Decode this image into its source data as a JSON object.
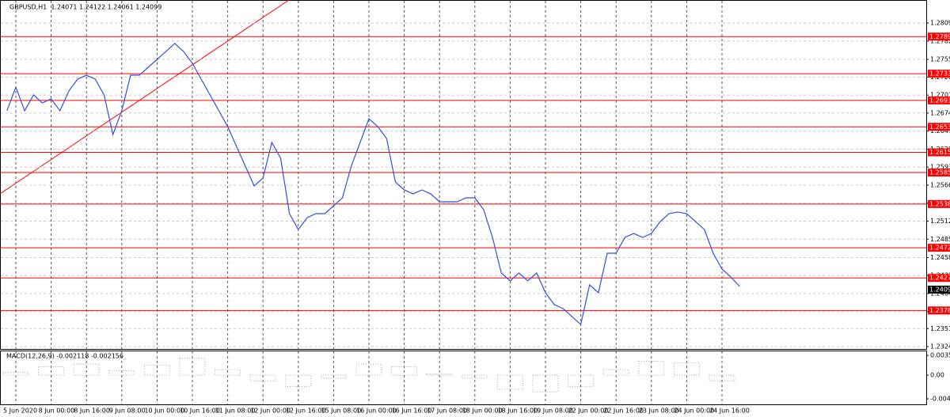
{
  "chart_data": [
    {
      "type": "line",
      "title": "GBPUSD,H1  1.24071 1.24122 1.24061 1.24099",
      "color": "#2f50d8",
      "grid": true,
      "categories": [
        null,
        "5 Jun 2020",
        null,
        null,
        null,
        "8 Jun 00:00",
        null,
        null,
        null,
        "8 Jun 16:00",
        null,
        null,
        null,
        "9 Jun 08:00",
        null,
        null,
        null,
        "10 Jun 00:00",
        null,
        null,
        null,
        "10 Jun 16:00",
        null,
        null,
        null,
        "11 Jun 08:00",
        null,
        null,
        null,
        "12 Jun 00:00",
        null,
        null,
        null,
        "12 Jun 16:00",
        null,
        null,
        null,
        "15 Jun 08:00",
        null,
        null,
        null,
        "16 Jun 00:00",
        null,
        null,
        null,
        "16 Jun 16:00",
        null,
        null,
        null,
        "17 Jun 08:00",
        null,
        null,
        null,
        "18 Jun 00:00",
        null,
        null,
        null,
        "18 Jun 16:00",
        null,
        null,
        null,
        "19 Jun 08:00",
        null,
        null,
        null,
        "22 Jun 00:00",
        null,
        null,
        null,
        "22 Jun 16:00",
        null,
        null,
        null,
        "23 Jun 08:00",
        null,
        null,
        null,
        "24 Jun 00:00",
        null,
        null,
        null,
        "24 Jun 16:00",
        null,
        null
      ],
      "values": [
        1.2678,
        1.27135,
        1.2678,
        1.27017,
        1.26898,
        1.26957,
        1.2678,
        1.27076,
        1.27254,
        1.27313,
        1.27254,
        1.27017,
        1.26424,
        1.2678,
        1.27313,
        1.27313,
        1.27432,
        1.2755,
        1.27669,
        1.27788,
        1.27669,
        1.27491,
        1.27254,
        1.27017,
        1.2678,
        1.26542,
        1.26246,
        1.25949,
        1.25653,
        1.25771,
        1.26305,
        1.26068,
        1.25238,
        1.25001,
        1.25178,
        1.25238,
        1.25238,
        1.25356,
        1.25475,
        1.25949,
        1.26305,
        1.26661,
        1.26542,
        1.26364,
        1.25712,
        1.25594,
        1.25534,
        1.25594,
        1.25534,
        1.25416,
        1.25416,
        1.25416,
        1.25475,
        1.25475,
        1.25297,
        1.24882,
        1.24348,
        1.2423,
        1.24348,
        1.2423,
        1.24348,
        1.24052,
        1.23874,
        1.23815,
        1.23696,
        1.23577,
        1.2417,
        1.24052,
        1.24645,
        1.24645,
        1.24882,
        1.24941,
        1.24882,
        1.24941,
        1.25119,
        1.25238,
        1.25262,
        1.25238,
        1.25119,
        1.25001,
        1.24645,
        1.24408,
        1.24289,
        1.24147
      ],
      "ylim": [
        1.2321,
        1.2844
      ],
      "yticks": [
        1.28095,
        1.27825,
        1.2755,
        1.27285,
        1.27015,
        1.26745,
        1.26475,
        1.26205,
        1.25935,
        1.25665,
        1.25395,
        1.25125,
        1.24855,
        1.2458,
        1.2431,
        1.2404,
        1.2377,
        1.23515,
        1.23245
      ],
      "levels": [
        1.27891,
        1.27336,
        1.26935,
        1.26539,
        1.26157,
        1.25854,
        1.25382,
        1.24727,
        1.24275,
        1.23787
      ],
      "level_color": "#ff0000",
      "last_price": 1.24099
    },
    {
      "type": "bar",
      "title": "MACD(12,26,9) -0.002118 -0.002156",
      "color": "#a8a8a8",
      "values": [
        0.0005,
        0.0015,
        0.002,
        0.0008,
        0.0018,
        0.003,
        0.001,
        -0.001,
        -0.002,
        -0.0005,
        0.002,
        0.0015,
        0.0002,
        -0.0005,
        -0.0025,
        -0.003,
        -0.002,
        0.001,
        0.0025,
        0.0022,
        -0.001
      ],
      "ylim": [
        -0.0052,
        0.0044
      ],
      "yticks": [
        0.003532,
        {
          "value": 0,
          "label": "0.00"
        },
        -0.004212
      ]
    }
  ]
}
